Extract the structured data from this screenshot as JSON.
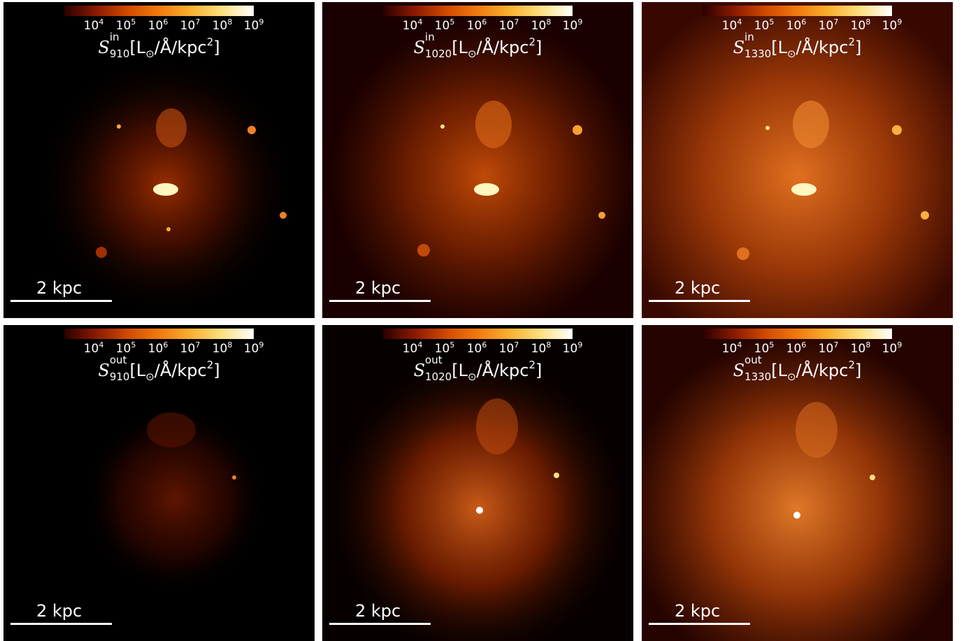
{
  "colorbar": {
    "ticks": [
      {
        "base": "10",
        "exp": "4"
      },
      {
        "base": "10",
        "exp": "5"
      },
      {
        "base": "10",
        "exp": "6"
      },
      {
        "base": "10",
        "exp": "7"
      },
      {
        "base": "10",
        "exp": "8"
      },
      {
        "base": "10",
        "exp": "9"
      }
    ],
    "colors": [
      "#2a0000",
      "#8a1a00",
      "#d04a00",
      "#f07a10",
      "#f8b030",
      "#fce080",
      "#ffffff"
    ]
  },
  "units": "[L",
  "units_tail": "/Å/kpc",
  "units_exp": "2",
  "units_close": "]",
  "odot": "⊙",
  "symbol": "S",
  "scale_bar": "2 kpc",
  "panels": [
    {
      "sup": "in",
      "sub": "910"
    },
    {
      "sup": "in",
      "sub": "1020"
    },
    {
      "sup": "in",
      "sub": "1330"
    },
    {
      "sup": "out",
      "sub": "910"
    },
    {
      "sup": "out",
      "sub": "1020"
    },
    {
      "sup": "out",
      "sub": "1330"
    }
  ]
}
